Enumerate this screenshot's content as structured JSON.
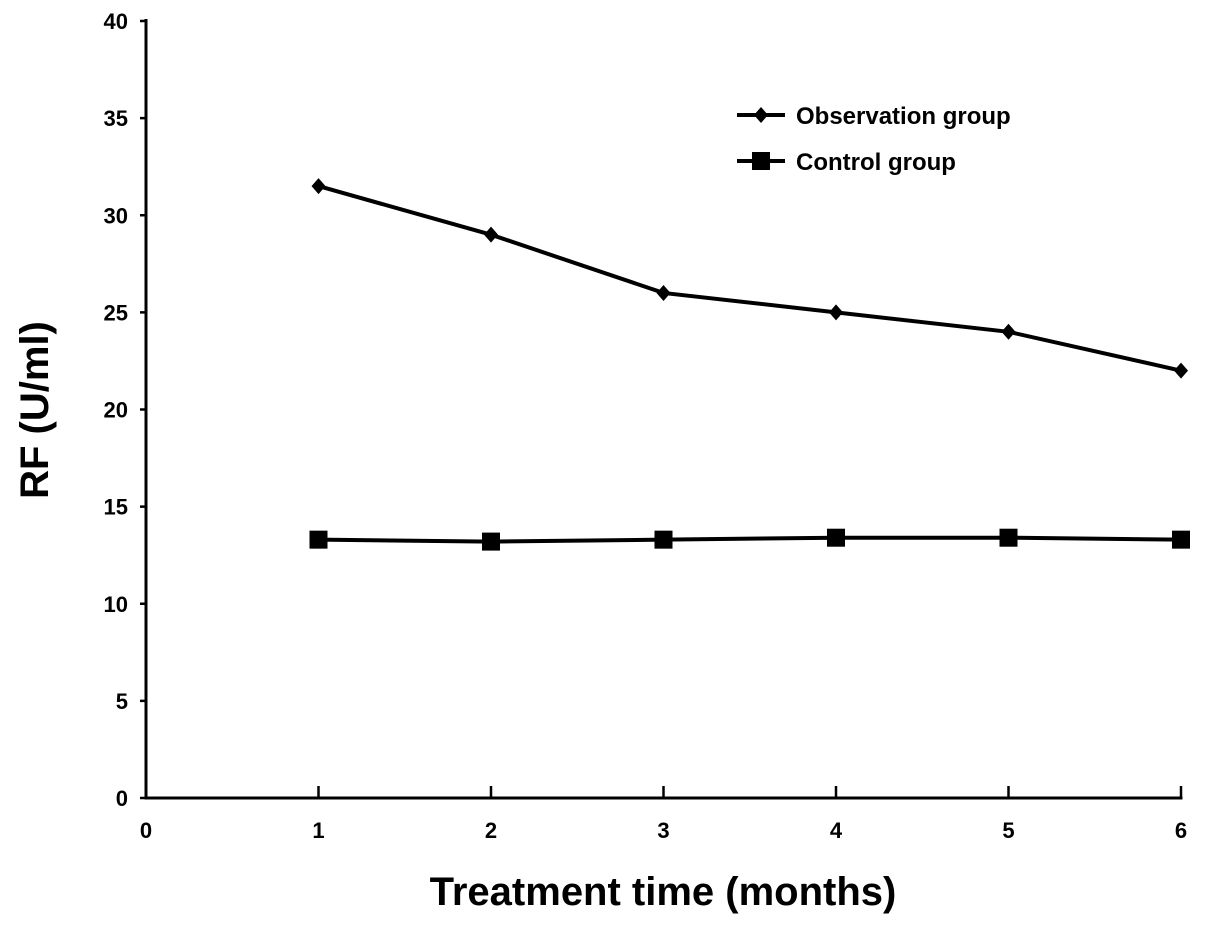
{
  "chart_data": {
    "type": "line",
    "title": "",
    "xlabel": "Treatment time (months)",
    "ylabel": "RF (U/ml)",
    "xlim": [
      0,
      6
    ],
    "ylim": [
      0,
      40
    ],
    "xticks": [
      0,
      1,
      2,
      3,
      4,
      5,
      6
    ],
    "yticks": [
      0,
      5,
      10,
      15,
      20,
      25,
      30,
      35,
      40
    ],
    "grid": false,
    "legend_position": "top-right",
    "x": [
      1,
      2,
      3,
      4,
      5,
      6
    ],
    "series": [
      {
        "name": "Observation group",
        "marker": "diamond",
        "color": "#000000",
        "values": [
          31.5,
          29.0,
          26.0,
          25.0,
          24.0,
          22.0
        ]
      },
      {
        "name": "Control group",
        "marker": "square",
        "color": "#000000",
        "values": [
          13.3,
          13.2,
          13.3,
          13.4,
          13.4,
          13.3
        ]
      }
    ]
  }
}
